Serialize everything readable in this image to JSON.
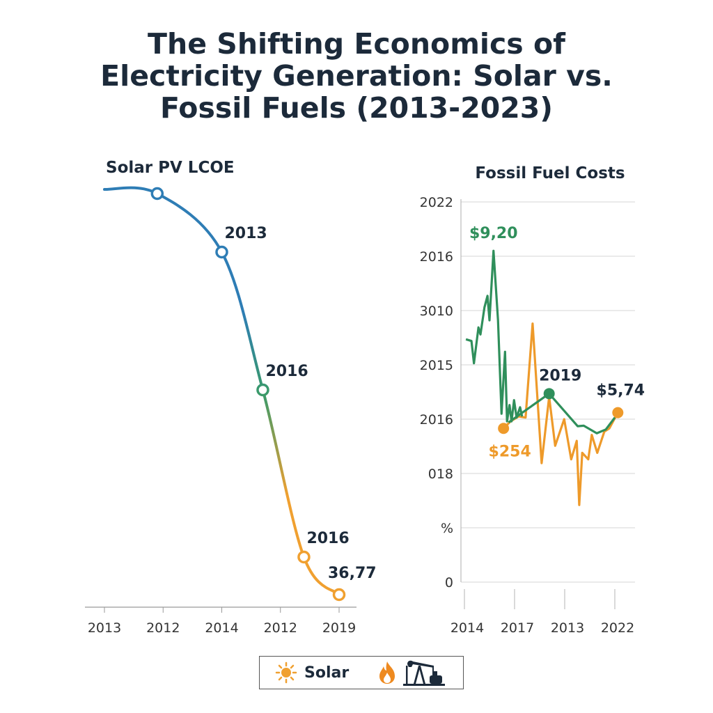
{
  "title_lines": [
    "The Shifting Economics of",
    "Electricity Generation: Solar vs.",
    "Fossil Fuels (2013-2023)"
  ],
  "colors": {
    "title": "#1c2a3a",
    "solar_top": "#2e7db5",
    "solar_mid": "#3a9a6a",
    "solar_bottom": "#f0a030",
    "fossil_green": "#2f8f5b",
    "fossil_orange": "#ee9a2a",
    "grid": "#dddddd"
  },
  "legend": {
    "items": [
      {
        "icon": "sun-icon",
        "label": "Solar"
      },
      {
        "icon": "flame-icon",
        "label": ""
      },
      {
        "icon": "oil-pumpjack-icon",
        "label": ""
      }
    ]
  },
  "chart_data": [
    {
      "type": "line",
      "title": "Solar PV LCOE",
      "x_tick_labels": [
        "2013",
        "2012",
        "2014",
        "2012",
        "2019"
      ],
      "grid": false,
      "series": [
        {
          "points": [
            [
              0,
              100
            ],
            [
              0.9,
              99
            ],
            [
              2,
              85
            ],
            [
              2.7,
              52
            ],
            [
              3.4,
              12
            ],
            [
              4,
              3
            ]
          ],
          "markers": [
            1,
            2,
            3,
            4,
            5
          ],
          "labels": [
            {
              "point": 2,
              "text": "2013"
            },
            {
              "point": 3,
              "text": "2016"
            },
            {
              "point": 4,
              "text": "2016"
            },
            {
              "point": 5,
              "text": "36,77"
            }
          ]
        }
      ]
    },
    {
      "type": "line",
      "title": "Fossil Fuel Costs",
      "x_tick_labels": [
        "2014",
        "2017",
        "2013",
        "2022"
      ],
      "y_tick_labels": [
        "0",
        "%",
        "018",
        "2016",
        "2015",
        "3010",
        "2016",
        "2022"
      ],
      "grid": true,
      "series": [
        {
          "color": "green",
          "segments": [
            [
              [
                0.03,
                4.47
              ],
              [
                0.14,
                4.44
              ],
              [
                0.19,
                4.03
              ],
              [
                0.28,
                4.69
              ],
              [
                0.32,
                4.56
              ],
              [
                0.4,
                5.06
              ],
              [
                0.46,
                5.27
              ],
              [
                0.5,
                4.82
              ],
              [
                0.58,
                6.1
              ],
              [
                0.67,
                4.82
              ],
              [
                0.74,
                3.1
              ],
              [
                0.81,
                4.24
              ],
              [
                0.85,
                2.96
              ],
              [
                0.9,
                3.26
              ],
              [
                0.94,
                2.96
              ],
              [
                0.99,
                3.35
              ],
              [
                1.04,
                3.03
              ],
              [
                1.11,
                3.22
              ],
              [
                1.15,
                3.05
              ]
            ],
            [
              [
                0.88,
                2.94
              ],
              [
                1.69,
                3.47
              ],
              [
                2.26,
                2.87
              ],
              [
                2.38,
                2.88
              ],
              [
                2.64,
                2.74
              ],
              [
                2.82,
                2.81
              ],
              [
                3.0,
                3.03
              ]
            ]
          ],
          "markers": [
            [
              1.69,
              3.47
            ]
          ],
          "labels": [
            {
              "at": [
                0.58,
                6.1
              ],
              "text": "$9,20"
            },
            {
              "at": [
                1.69,
                3.47
              ],
              "text": "2019"
            }
          ]
        },
        {
          "color": "orange",
          "segments": [
            [
              [
                0.78,
                2.83
              ],
              [
                0.92,
                2.96
              ],
              [
                1.08,
                3.05
              ],
              [
                1.22,
                3.03
              ],
              [
                1.36,
                4.76
              ],
              [
                1.54,
                2.19
              ],
              [
                1.69,
                3.41
              ],
              [
                1.81,
                2.51
              ],
              [
                1.99,
                3.0
              ],
              [
                2.13,
                2.26
              ],
              [
                2.24,
                2.6
              ],
              [
                2.29,
                1.42
              ],
              [
                2.35,
                2.38
              ],
              [
                2.47,
                2.26
              ],
              [
                2.54,
                2.71
              ],
              [
                2.65,
                2.38
              ],
              [
                2.79,
                2.77
              ],
              [
                2.89,
                2.83
              ],
              [
                3.06,
                3.12
              ]
            ]
          ],
          "markers": [
            [
              0.78,
              2.83
            ],
            [
              3.06,
              3.12
            ]
          ],
          "labels": [
            {
              "at": [
                0.78,
                2.83
              ],
              "text": "$254"
            },
            {
              "at": [
                3.06,
                3.12
              ],
              "text": "$5,74"
            }
          ]
        }
      ]
    }
  ]
}
